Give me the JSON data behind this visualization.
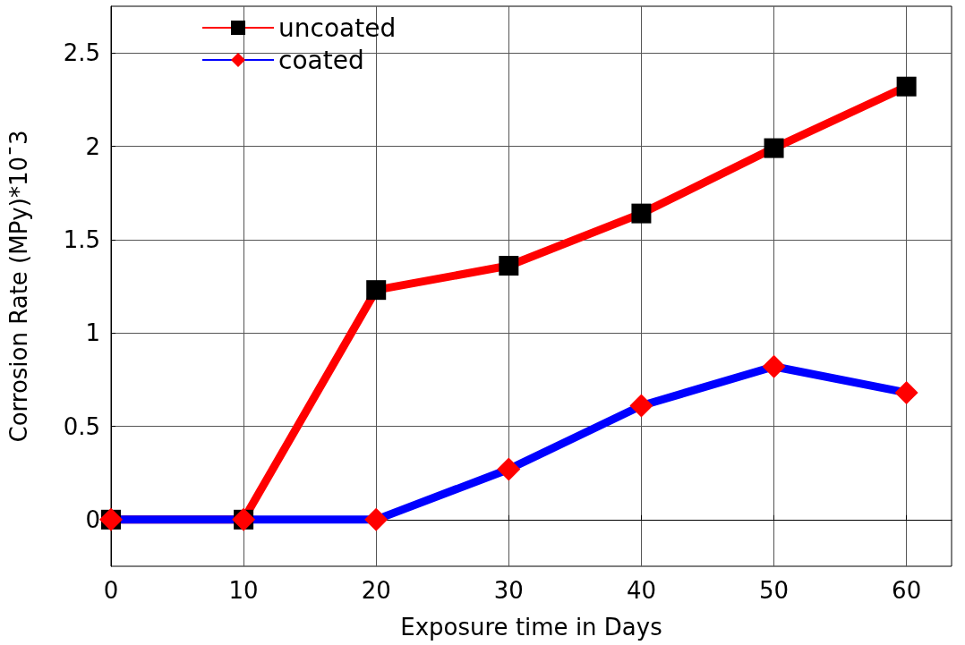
{
  "chart_data": {
    "type": "line",
    "xlabel": "Exposure time in Days",
    "ylabel": "Corrosion Rate (MPy)*10ˉ3",
    "x": [
      0,
      10,
      20,
      30,
      40,
      50,
      60
    ],
    "series": [
      {
        "name": "uncoated",
        "color": "#ff0000",
        "marker": "square",
        "colors": [
          "#000000",
          "#000000",
          "#000000",
          "#000000",
          "#000000",
          "#000000",
          "#000000"
        ],
        "values": [
          0,
          0,
          1.23,
          1.36,
          1.64,
          1.99,
          2.32
        ]
      },
      {
        "name": "coated",
        "color": "#0000ff",
        "marker": "diamond",
        "colors": [
          "#ff0000",
          "#ff0000",
          "#ff0000",
          "#ff0000",
          "#ff0000",
          "#ff0000",
          "#ff0000"
        ],
        "values": [
          0,
          0,
          0,
          0.27,
          0.61,
          0.82,
          0.68
        ]
      }
    ],
    "xlim": [
      0,
      63.4
    ],
    "xticks": [
      0,
      10,
      20,
      30,
      40,
      50,
      60
    ],
    "ylim": [
      -0.25,
      2.75
    ],
    "yticks": [
      0,
      0.5,
      1,
      1.5,
      2,
      2.5
    ],
    "grid": true,
    "legend": "top left",
    "line_style": "solid"
  }
}
